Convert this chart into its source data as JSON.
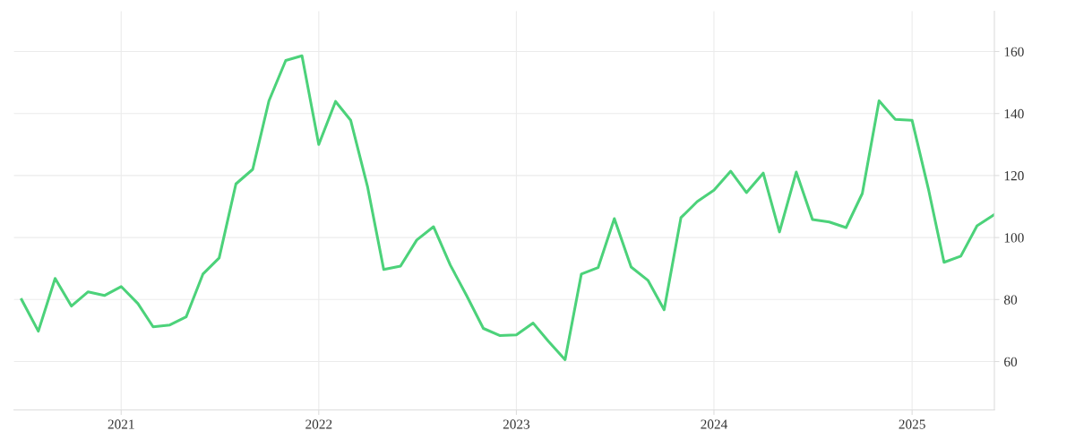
{
  "chart_data": {
    "type": "line",
    "x": [
      "2020-07",
      "2020-08",
      "2020-09",
      "2020-10",
      "2020-11",
      "2020-12",
      "2021-01",
      "2021-02",
      "2021-03",
      "2021-04",
      "2021-05",
      "2021-06",
      "2021-07",
      "2021-08",
      "2021-09",
      "2021-10",
      "2021-11",
      "2021-12",
      "2022-01",
      "2022-02",
      "2022-03",
      "2022-04",
      "2022-05",
      "2022-06",
      "2022-07",
      "2022-08",
      "2022-09",
      "2022-10",
      "2022-11",
      "2022-12",
      "2023-01",
      "2023-02",
      "2023-03",
      "2023-04",
      "2023-05",
      "2023-06",
      "2023-07",
      "2023-08",
      "2023-09",
      "2023-10",
      "2023-11",
      "2023-12",
      "2024-01",
      "2024-02",
      "2024-03",
      "2024-04",
      "2024-05",
      "2024-06",
      "2024-07",
      "2024-08",
      "2024-09",
      "2024-10",
      "2024-11",
      "2024-12",
      "2025-01",
      "2025-02",
      "2025-03",
      "2025-04",
      "2025-05",
      "2025-06"
    ],
    "series": [
      {
        "color": "#4cd27a",
        "values": [
          80,
          69.8,
          86.8,
          77.9,
          82.5,
          81.3,
          84.2,
          78.7,
          71.2,
          71.8,
          74.4,
          88.2,
          93.4,
          117.3,
          122,
          144.1,
          157.1,
          158.6,
          130,
          143.9,
          137.8,
          116.5,
          89.7,
          90.8,
          99.2,
          103.5,
          91.1,
          81.3,
          70.7,
          68.4,
          68.6,
          72.4,
          66.6,
          60.6,
          88.2,
          90.3,
          106.1,
          90.5,
          86.2,
          76.7,
          106.4,
          111.6,
          115.3,
          121.4,
          114.5,
          120.8,
          101.8,
          121.1,
          105.8,
          105,
          103.2,
          114.2,
          144.1,
          138.1,
          137.8,
          115,
          92,
          94,
          103.8,
          107.3
        ]
      }
    ],
    "xlim": [
      "2020-06-17",
      "2025-06-02"
    ],
    "xticks": [
      {
        "value": "2021",
        "label": "2021"
      },
      {
        "value": "2022",
        "label": "2022"
      },
      {
        "value": "2023",
        "label": "2023"
      },
      {
        "value": "2024",
        "label": "2024"
      },
      {
        "value": "2025",
        "label": "2025"
      }
    ],
    "ylim": [
      44.4,
      173
    ],
    "yticks": [
      60,
      80,
      100,
      120,
      140,
      160
    ],
    "grid": true,
    "marker": "none",
    "line_style": "solid"
  }
}
